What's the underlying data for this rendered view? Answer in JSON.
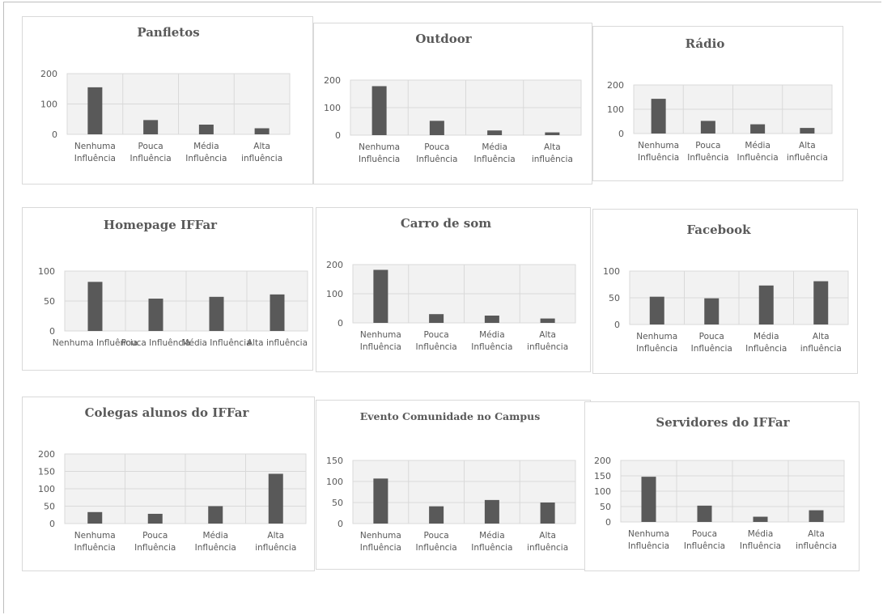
{
  "page": {
    "ylabel_color": "#595959",
    "bar_color": "#595959",
    "grid_color": "#d9d9d9",
    "plot_bg": "#f2f2f2"
  },
  "chart_data": [
    {
      "type": "bar",
      "title": "Panfletos",
      "categories": [
        "Nenhuma Influência",
        "Pouca Influência",
        "Média Influência",
        "Alta influência"
      ],
      "category_lines": [
        [
          "Nenhuma",
          "Influência"
        ],
        [
          "Pouca",
          "Influência"
        ],
        [
          "Média",
          "Influência"
        ],
        [
          "Alta",
          "influência"
        ]
      ],
      "values": [
        155,
        47,
        32,
        20
      ],
      "ylim": [
        0,
        200
      ],
      "yticks": [
        "0",
        "100",
        "200"
      ],
      "grid": true
    },
    {
      "type": "bar",
      "title": "Outdoor",
      "categories": [
        "Nenhuma Influência",
        "Pouca Influência",
        "Média Influência",
        "Alta influência"
      ],
      "category_lines": [
        [
          "Nenhuma",
          "Influência"
        ],
        [
          "Pouca",
          "Influência"
        ],
        [
          "Média",
          "Influência"
        ],
        [
          "Alta",
          "influência"
        ]
      ],
      "values": [
        178,
        52,
        17,
        10
      ],
      "ylim": [
        0,
        200
      ],
      "yticks": [
        "0",
        "100",
        "200"
      ],
      "grid": true
    },
    {
      "type": "bar",
      "title": "Rádio",
      "categories": [
        "Nenhuma Influência",
        "Pouca Influência",
        "Média Influência",
        "Alta influência"
      ],
      "category_lines": [
        [
          "Nenhuma",
          "Influência"
        ],
        [
          "Pouca",
          "Influência"
        ],
        [
          "Média",
          "Influência"
        ],
        [
          "Alta",
          "influência"
        ]
      ],
      "values": [
        143,
        52,
        38,
        23
      ],
      "ylim": [
        0,
        200
      ],
      "yticks": [
        "0",
        "100",
        "200"
      ],
      "grid": true
    },
    {
      "type": "bar",
      "title": "Homepage IFFar",
      "categories": [
        "Nenhuma Influência",
        "Pouca Influência",
        "Média Influência",
        "Alta influência"
      ],
      "category_lines": [
        [
          "Nenhuma Influência"
        ],
        [
          "Pouca Influência"
        ],
        [
          "Média Influência"
        ],
        [
          "Alta influência"
        ]
      ],
      "values": [
        82,
        54,
        57,
        61
      ],
      "ylim": [
        0,
        100
      ],
      "yticks": [
        "0",
        "50",
        "100"
      ],
      "grid": true
    },
    {
      "type": "bar",
      "title": "Carro de som",
      "categories": [
        "Nenhuma Influência",
        "Pouca Influência",
        "Média Influência",
        "Alta influência"
      ],
      "category_lines": [
        [
          "Nenhuma",
          "Influência"
        ],
        [
          "Pouca",
          "Influência"
        ],
        [
          "Média",
          "Influência"
        ],
        [
          "Alta",
          "influência"
        ]
      ],
      "values": [
        182,
        30,
        25,
        15
      ],
      "ylim": [
        0,
        200
      ],
      "yticks": [
        "0",
        "100",
        "200"
      ],
      "grid": true
    },
    {
      "type": "bar",
      "title": "Facebook",
      "categories": [
        "Nenhuma Influência",
        "Pouca Influência",
        "Média Influência",
        "Alta influência"
      ],
      "category_lines": [
        [
          "Nenhuma",
          "Influência"
        ],
        [
          "Pouca",
          "Influência"
        ],
        [
          "Média",
          "Influência"
        ],
        [
          "Alta",
          "influência"
        ]
      ],
      "values": [
        52,
        49,
        73,
        81
      ],
      "ylim": [
        0,
        100
      ],
      "yticks": [
        "0",
        "50",
        "100"
      ],
      "grid": true
    },
    {
      "type": "bar",
      "title": "Colegas alunos do IFFar",
      "categories": [
        "Nenhuma Influência",
        "Pouca Influência",
        "Média Influência",
        "Alta influência"
      ],
      "category_lines": [
        [
          "Nenhuma",
          "Influência"
        ],
        [
          "Pouca",
          "Influência"
        ],
        [
          "Média",
          "Influência"
        ],
        [
          "Alta",
          "influência"
        ]
      ],
      "values": [
        33,
        28,
        50,
        143
      ],
      "ylim": [
        0,
        200
      ],
      "yticks": [
        "0",
        "50",
        "100",
        "150",
        "200"
      ],
      "grid": true
    },
    {
      "type": "bar",
      "title": "Evento Comunidade no Campus",
      "categories": [
        "Nenhuma Influência",
        "Pouca Influência",
        "Média Influência",
        "Alta influência"
      ],
      "category_lines": [
        [
          "Nenhuma",
          "Influência"
        ],
        [
          "Pouca",
          "Influência"
        ],
        [
          "Média",
          "Influência"
        ],
        [
          "Alta",
          "influência"
        ]
      ],
      "values": [
        107,
        41,
        56,
        50
      ],
      "ylim": [
        0,
        150
      ],
      "yticks": [
        "0",
        "50",
        "100",
        "150"
      ],
      "grid": true
    },
    {
      "type": "bar",
      "title": "Servidores do IFFar",
      "categories": [
        "Nenhuma Influência",
        "Pouca Influência",
        "Média Influência",
        "Alta influência"
      ],
      "category_lines": [
        [
          "Nenhuma",
          "Influência"
        ],
        [
          "Pouca",
          "Influência"
        ],
        [
          "Média",
          "Influência"
        ],
        [
          "Alta",
          "influência"
        ]
      ],
      "values": [
        147,
        53,
        17,
        38
      ],
      "ylim": [
        0,
        200
      ],
      "yticks": [
        "0",
        "50",
        "100",
        "150",
        "200"
      ],
      "grid": true
    }
  ]
}
